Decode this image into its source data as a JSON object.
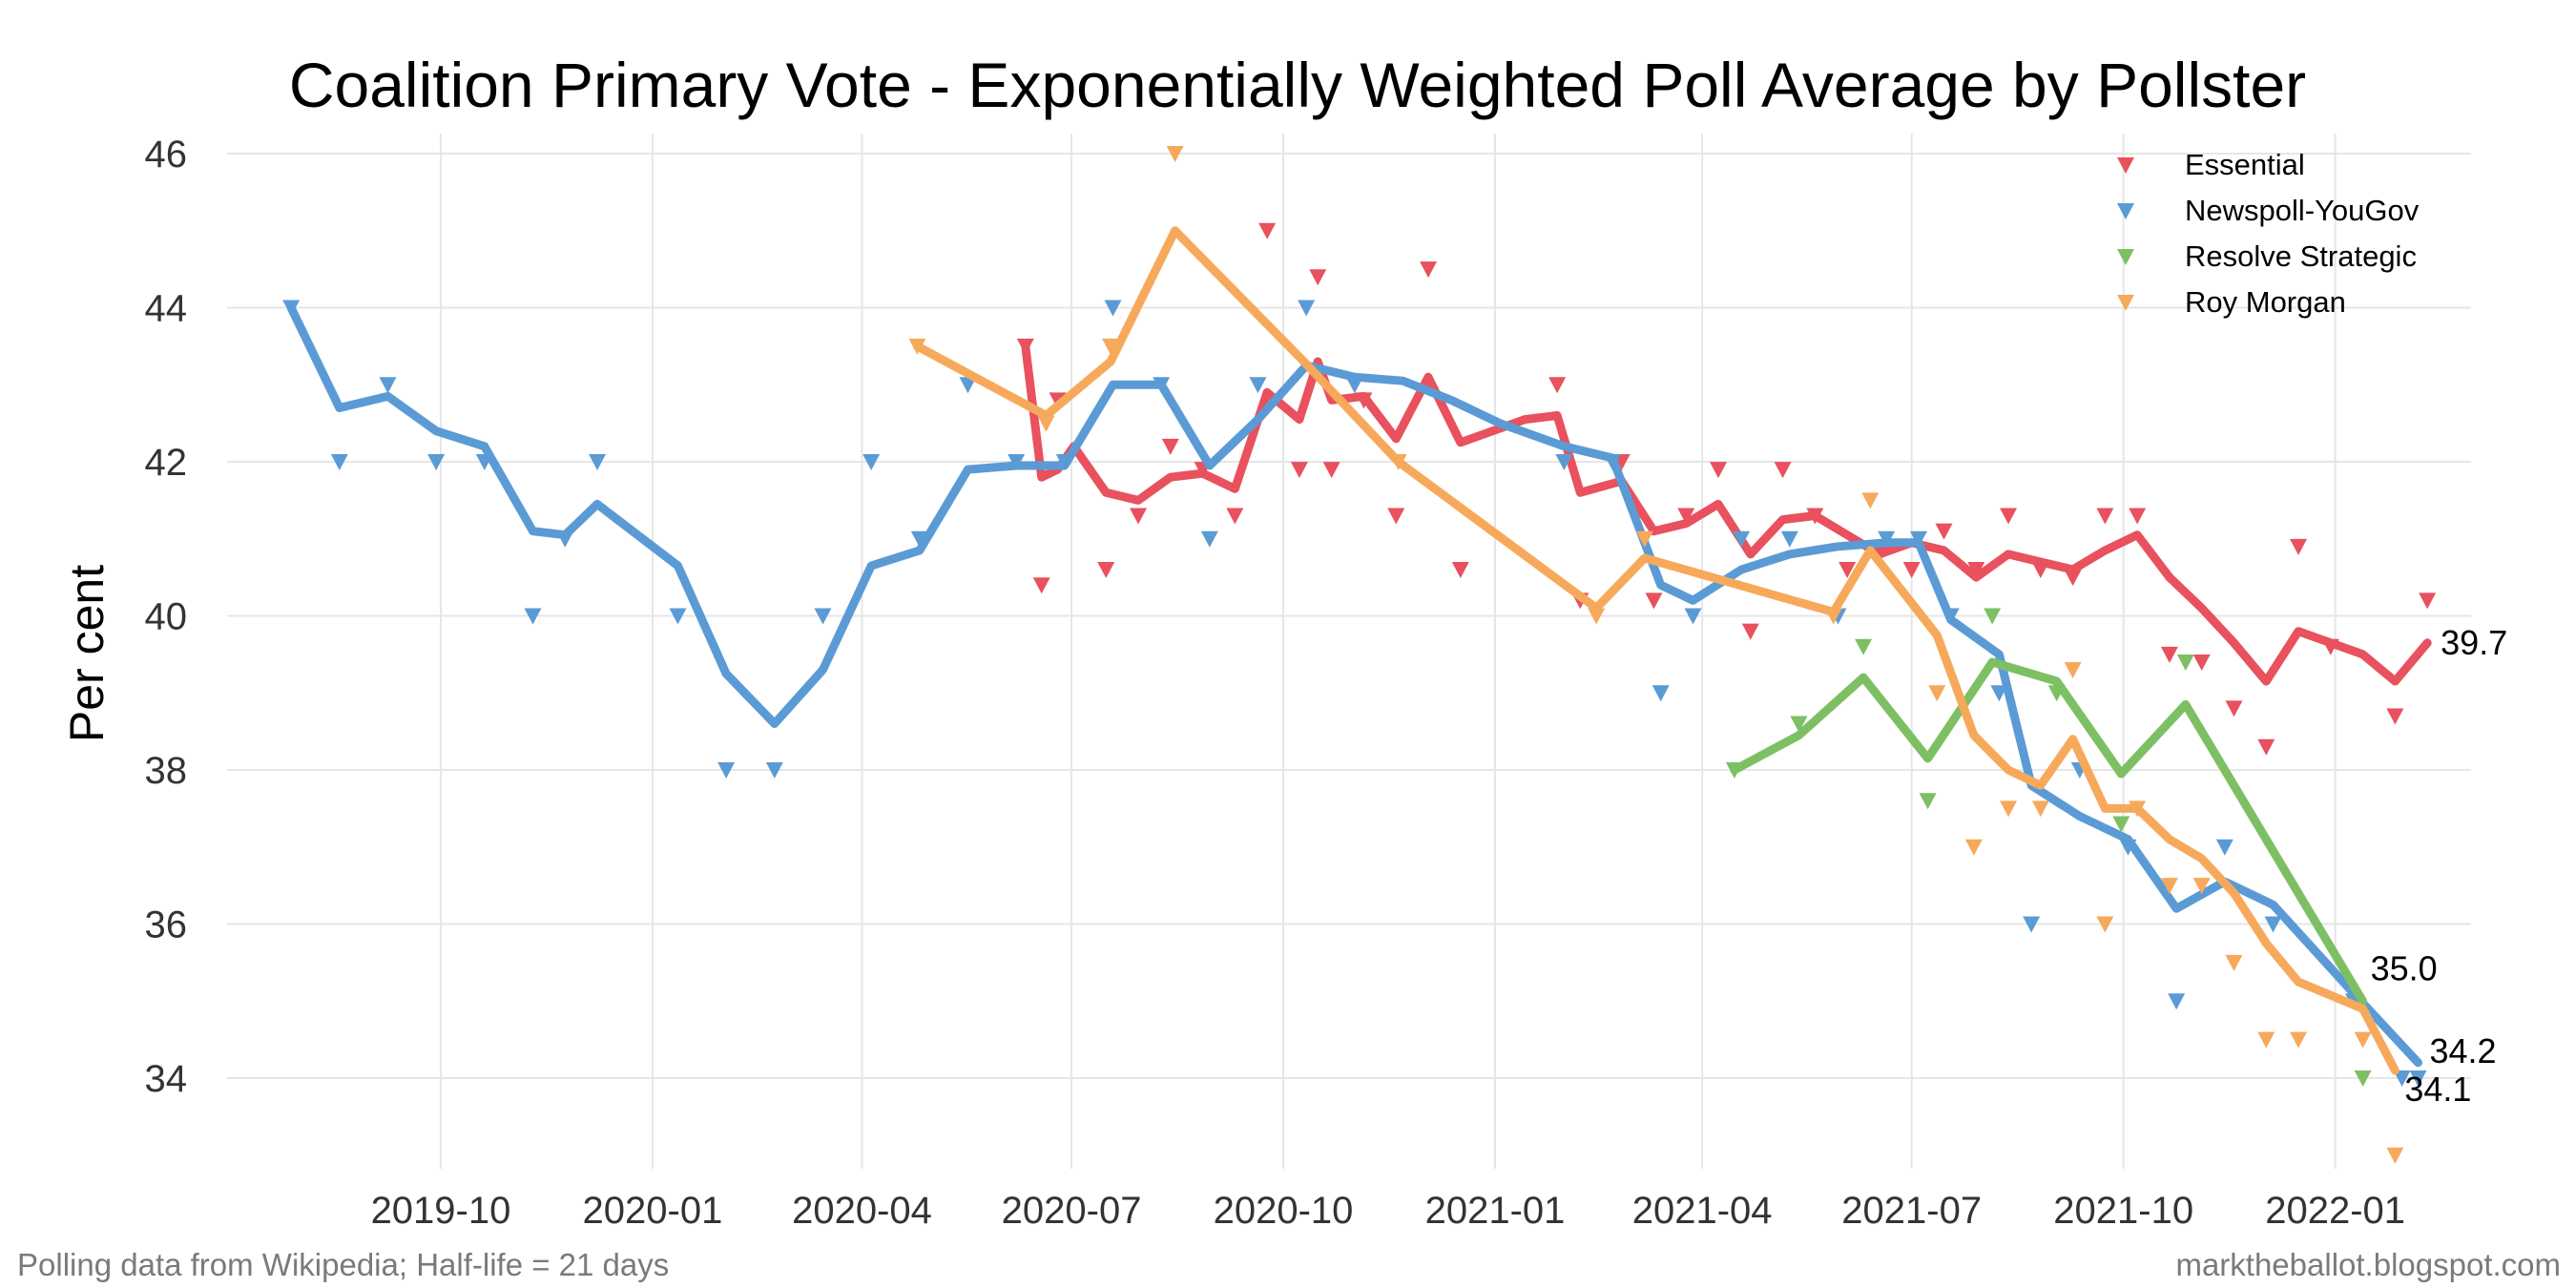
{
  "chart_data": {
    "type": "line",
    "title": "Coalition Primary Vote - Exponentially Weighted Poll Average by Pollster",
    "xlabel": "",
    "ylabel": "Per cent",
    "ylim": [
      32.8,
      46.4
    ],
    "yticks": [
      "34",
      "36",
      "38",
      "40",
      "42",
      "44",
      "46"
    ],
    "xticks": [
      "2019-10",
      "2020-01",
      "2020-04",
      "2020-07",
      "2020-10",
      "2021-01",
      "2021-04",
      "2021-07",
      "2021-10",
      "2022-01"
    ],
    "legend_position": "top-right",
    "footnote_left": "Polling data from Wikipedia; Half-life = 21 days",
    "footnote_right": "marktheballot.blogspot.com",
    "series": [
      {
        "name": "Essential",
        "color": "#E8515D",
        "end_label": "39.7",
        "line": [
          [
            "2020-06-11",
            43.5
          ],
          [
            "2020-06-18",
            41.8
          ],
          [
            "2020-06-25",
            41.9
          ],
          [
            "2020-07-02",
            42.2
          ],
          [
            "2020-07-16",
            41.6
          ],
          [
            "2020-07-30",
            41.5
          ],
          [
            "2020-08-13",
            41.8
          ],
          [
            "2020-08-27",
            41.85
          ],
          [
            "2020-09-10",
            41.65
          ],
          [
            "2020-09-24",
            42.9
          ],
          [
            "2020-10-08",
            42.55
          ],
          [
            "2020-10-16",
            43.3
          ],
          [
            "2020-10-22",
            42.8
          ],
          [
            "2020-11-05",
            42.85
          ],
          [
            "2020-11-19",
            42.3
          ],
          [
            "2020-12-03",
            43.1
          ],
          [
            "2020-12-17",
            42.25
          ],
          [
            "2020-12-31",
            42.4
          ],
          [
            "2021-01-14",
            42.55
          ],
          [
            "2021-01-28",
            42.6
          ],
          [
            "2021-02-07",
            41.6
          ],
          [
            "2021-02-25",
            41.75
          ],
          [
            "2021-03-11",
            41.1
          ],
          [
            "2021-03-25",
            41.2
          ],
          [
            "2021-04-08",
            41.45
          ],
          [
            "2021-04-22",
            40.8
          ],
          [
            "2021-05-06",
            41.25
          ],
          [
            "2021-05-20",
            41.3
          ],
          [
            "2021-06-03",
            41.05
          ],
          [
            "2021-06-17",
            40.8
          ],
          [
            "2021-07-01",
            40.95
          ],
          [
            "2021-07-15",
            40.85
          ],
          [
            "2021-07-29",
            40.5
          ],
          [
            "2021-08-12",
            40.8
          ],
          [
            "2021-08-26",
            40.7
          ],
          [
            "2021-09-09",
            40.6
          ],
          [
            "2021-09-23",
            40.85
          ],
          [
            "2021-10-07",
            41.05
          ],
          [
            "2021-10-21",
            40.5
          ],
          [
            "2021-11-04",
            40.1
          ],
          [
            "2021-11-18",
            39.65
          ],
          [
            "2021-12-02",
            39.15
          ],
          [
            "2021-12-16",
            39.8
          ],
          [
            "2022-01-13",
            39.5
          ],
          [
            "2022-01-27",
            39.15
          ],
          [
            "2022-02-10",
            39.65
          ]
        ],
        "polls": [
          [
            "2020-06-11",
            43.5
          ],
          [
            "2020-06-18",
            40.4
          ],
          [
            "2020-06-25",
            42.8
          ],
          [
            "2020-07-16",
            40.6
          ],
          [
            "2020-07-30",
            41.3
          ],
          [
            "2020-08-13",
            42.2
          ],
          [
            "2020-08-27",
            41.9
          ],
          [
            "2020-09-10",
            41.3
          ],
          [
            "2020-09-24",
            45.0
          ],
          [
            "2020-10-08",
            41.9
          ],
          [
            "2020-10-16",
            44.4
          ],
          [
            "2020-10-22",
            41.9
          ],
          [
            "2020-11-05",
            42.8
          ],
          [
            "2020-11-19",
            41.3
          ],
          [
            "2020-12-03",
            44.5
          ],
          [
            "2020-12-17",
            40.6
          ],
          [
            "2021-01-28",
            43.0
          ],
          [
            "2021-02-07",
            40.2
          ],
          [
            "2021-02-25",
            42.0
          ],
          [
            "2021-03-11",
            40.2
          ],
          [
            "2021-03-25",
            41.3
          ],
          [
            "2021-04-08",
            41.9
          ],
          [
            "2021-04-22",
            39.8
          ],
          [
            "2021-05-06",
            41.9
          ],
          [
            "2021-05-20",
            41.3
          ],
          [
            "2021-06-03",
            40.6
          ],
          [
            "2021-06-17",
            40.8
          ],
          [
            "2021-07-01",
            40.6
          ],
          [
            "2021-07-15",
            41.1
          ],
          [
            "2021-07-29",
            40.6
          ],
          [
            "2021-08-12",
            41.3
          ],
          [
            "2021-08-26",
            40.6
          ],
          [
            "2021-09-09",
            40.5
          ],
          [
            "2021-09-23",
            41.3
          ],
          [
            "2021-10-07",
            41.3
          ],
          [
            "2021-10-21",
            39.5
          ],
          [
            "2021-11-04",
            39.4
          ],
          [
            "2021-11-18",
            38.8
          ],
          [
            "2021-12-02",
            38.3
          ],
          [
            "2021-12-16",
            40.9
          ],
          [
            "2021-12-30",
            39.6
          ],
          [
            "2022-01-27",
            38.7
          ],
          [
            "2022-02-10",
            40.2
          ]
        ]
      },
      {
        "name": "Newspoll-YouGov",
        "color": "#5B9BD5",
        "end_label": "34.2",
        "line": [
          [
            "2019-07-28",
            44.0
          ],
          [
            "2019-08-18",
            42.7
          ],
          [
            "2019-09-08",
            42.85
          ],
          [
            "2019-09-29",
            42.4
          ],
          [
            "2019-10-20",
            42.2
          ],
          [
            "2019-11-10",
            41.1
          ],
          [
            "2019-11-24",
            41.05
          ],
          [
            "2019-12-08",
            41.45
          ],
          [
            "2020-01-12",
            40.65
          ],
          [
            "2020-02-02",
            39.25
          ],
          [
            "2020-02-23",
            38.6
          ],
          [
            "2020-03-15",
            39.3
          ],
          [
            "2020-04-05",
            40.65
          ],
          [
            "2020-04-26",
            40.85
          ],
          [
            "2020-05-17",
            41.9
          ],
          [
            "2020-06-07",
            41.95
          ],
          [
            "2020-06-28",
            41.95
          ],
          [
            "2020-07-19",
            43.0
          ],
          [
            "2020-08-09",
            43.0
          ],
          [
            "2020-08-30",
            41.95
          ],
          [
            "2020-09-20",
            42.55
          ],
          [
            "2020-10-11",
            43.25
          ],
          [
            "2020-11-01",
            43.1
          ],
          [
            "2020-11-22",
            43.05
          ],
          [
            "2020-12-13",
            42.8
          ],
          [
            "2021-01-03",
            42.5
          ],
          [
            "2021-01-31",
            42.2
          ],
          [
            "2021-02-21",
            42.05
          ],
          [
            "2021-03-14",
            40.4
          ],
          [
            "2021-03-28",
            40.2
          ],
          [
            "2021-04-18",
            40.6
          ],
          [
            "2021-05-09",
            40.8
          ],
          [
            "2021-05-30",
            40.9
          ],
          [
            "2021-06-20",
            40.95
          ],
          [
            "2021-07-04",
            40.95
          ],
          [
            "2021-07-18",
            39.95
          ],
          [
            "2021-08-08",
            39.5
          ],
          [
            "2021-08-22",
            37.8
          ],
          [
            "2021-09-12",
            37.4
          ],
          [
            "2021-10-03",
            37.1
          ],
          [
            "2021-10-24",
            36.2
          ],
          [
            "2021-11-14",
            36.55
          ],
          [
            "2021-12-05",
            36.25
          ],
          [
            "2022-01-09",
            35.1
          ],
          [
            "2022-02-06",
            34.2
          ]
        ],
        "polls": [
          [
            "2019-07-28",
            44.0
          ],
          [
            "2019-08-18",
            42.0
          ],
          [
            "2019-09-08",
            43.0
          ],
          [
            "2019-09-29",
            42.0
          ],
          [
            "2019-10-20",
            42.0
          ],
          [
            "2019-11-10",
            40.0
          ],
          [
            "2019-11-24",
            41.0
          ],
          [
            "2019-12-08",
            42.0
          ],
          [
            "2020-01-12",
            40.0
          ],
          [
            "2020-02-02",
            38.0
          ],
          [
            "2020-02-23",
            38.0
          ],
          [
            "2020-03-15",
            40.0
          ],
          [
            "2020-04-05",
            42.0
          ],
          [
            "2020-04-26",
            41.0
          ],
          [
            "2020-05-17",
            43.0
          ],
          [
            "2020-06-07",
            42.0
          ],
          [
            "2020-06-28",
            42.0
          ],
          [
            "2020-07-19",
            44.0
          ],
          [
            "2020-08-09",
            43.0
          ],
          [
            "2020-08-30",
            41.0
          ],
          [
            "2020-09-20",
            43.0
          ],
          [
            "2020-10-11",
            44.0
          ],
          [
            "2020-11-01",
            43.0
          ],
          [
            "2021-01-31",
            42.0
          ],
          [
            "2021-02-21",
            42.0
          ],
          [
            "2021-03-14",
            39.0
          ],
          [
            "2021-03-28",
            40.0
          ],
          [
            "2021-04-18",
            41.0
          ],
          [
            "2021-05-09",
            41.0
          ],
          [
            "2021-05-30",
            40.0
          ],
          [
            "2021-06-20",
            41.0
          ],
          [
            "2021-07-04",
            41.0
          ],
          [
            "2021-07-18",
            40.0
          ],
          [
            "2021-08-08",
            39.0
          ],
          [
            "2021-08-22",
            36.0
          ],
          [
            "2021-09-12",
            38.0
          ],
          [
            "2021-10-03",
            37.0
          ],
          [
            "2021-10-24",
            35.0
          ],
          [
            "2021-11-14",
            37.0
          ],
          [
            "2021-12-05",
            36.0
          ],
          [
            "2022-01-09",
            35.0
          ],
          [
            "2022-01-30",
            34.0
          ],
          [
            "2022-02-06",
            34.0
          ]
        ]
      },
      {
        "name": "Resolve Strategic",
        "color": "#7DC064",
        "end_label": "35.0",
        "line": [
          [
            "2021-04-15",
            38.0
          ],
          [
            "2021-05-13",
            38.45
          ],
          [
            "2021-06-10",
            39.2
          ],
          [
            "2021-07-08",
            38.15
          ],
          [
            "2021-08-05",
            39.4
          ],
          [
            "2021-09-02",
            39.15
          ],
          [
            "2021-09-30",
            37.95
          ],
          [
            "2021-10-28",
            38.85
          ],
          [
            "2022-01-13",
            35.0
          ]
        ],
        "polls": [
          [
            "2021-04-15",
            38.0
          ],
          [
            "2021-05-13",
            38.6
          ],
          [
            "2021-06-10",
            39.6
          ],
          [
            "2021-07-08",
            37.6
          ],
          [
            "2021-08-05",
            40.0
          ],
          [
            "2021-09-02",
            39.0
          ],
          [
            "2021-09-30",
            37.3
          ],
          [
            "2021-10-28",
            39.4
          ],
          [
            "2022-01-13",
            34.0
          ]
        ]
      },
      {
        "name": "Roy Morgan",
        "color": "#F7A95B",
        "end_label": "34.1",
        "line": [
          [
            "2020-04-25",
            43.5
          ],
          [
            "2020-06-20",
            42.6
          ],
          [
            "2020-07-18",
            43.3
          ],
          [
            "2020-08-15",
            45.0
          ],
          [
            "2020-10-10",
            43.3
          ],
          [
            "2020-11-20",
            42.0
          ],
          [
            "2021-02-14",
            40.1
          ],
          [
            "2021-03-07",
            40.75
          ],
          [
            "2021-05-28",
            40.05
          ],
          [
            "2021-06-13",
            40.85
          ],
          [
            "2021-07-12",
            39.75
          ],
          [
            "2021-07-28",
            38.45
          ],
          [
            "2021-08-12",
            38.0
          ],
          [
            "2021-08-26",
            37.8
          ],
          [
            "2021-09-09",
            38.4
          ],
          [
            "2021-09-23",
            37.5
          ],
          [
            "2021-10-07",
            37.5
          ],
          [
            "2021-10-21",
            37.1
          ],
          [
            "2021-11-04",
            36.85
          ],
          [
            "2021-11-18",
            36.4
          ],
          [
            "2021-12-02",
            35.75
          ],
          [
            "2021-12-16",
            35.25
          ],
          [
            "2022-01-13",
            34.9
          ],
          [
            "2022-01-27",
            34.1
          ]
        ],
        "polls": [
          [
            "2020-04-25",
            43.5
          ],
          [
            "2020-06-20",
            42.5
          ],
          [
            "2020-07-18",
            43.5
          ],
          [
            "2020-08-15",
            46.0
          ],
          [
            "2020-11-20",
            42.0
          ],
          [
            "2021-02-14",
            40.0
          ],
          [
            "2021-03-07",
            41.0
          ],
          [
            "2021-05-28",
            40.0
          ],
          [
            "2021-06-13",
            41.5
          ],
          [
            "2021-07-12",
            39.0
          ],
          [
            "2021-07-28",
            37.0
          ],
          [
            "2021-08-12",
            37.5
          ],
          [
            "2021-08-26",
            37.5
          ],
          [
            "2021-09-09",
            39.3
          ],
          [
            "2021-09-23",
            36.0
          ],
          [
            "2021-10-07",
            37.5
          ],
          [
            "2021-10-21",
            36.5
          ],
          [
            "2021-11-04",
            36.5
          ],
          [
            "2021-11-18",
            35.5
          ],
          [
            "2021-12-02",
            34.5
          ],
          [
            "2021-12-16",
            34.5
          ],
          [
            "2022-01-13",
            34.5
          ],
          [
            "2022-01-27",
            33.0
          ]
        ]
      }
    ]
  }
}
